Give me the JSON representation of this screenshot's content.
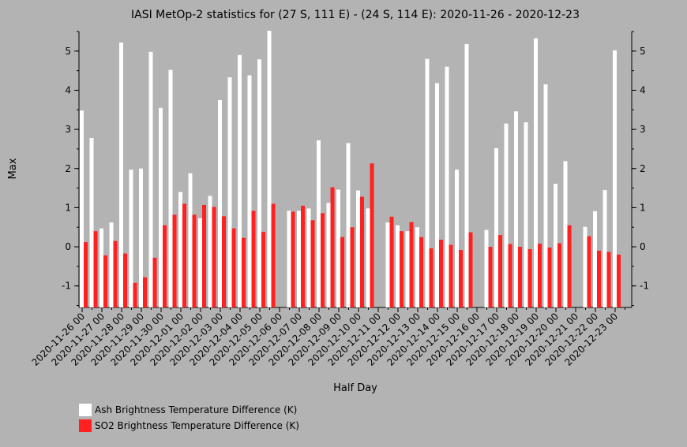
{
  "chart_data": {
    "type": "bar",
    "title": "IASI MetOp-2 statistics for (27 S, 111 E) - (24 S, 114 E): 2020-11-26 - 2020-12-23",
    "xlabel": "Half Day",
    "ylabel": "Max",
    "ylim": [
      -1.55,
      5.5
    ],
    "yticks": [
      -1,
      0,
      1,
      2,
      3,
      4,
      5
    ],
    "legend_position": "bottom-left",
    "grid": false,
    "categories": [
      "2020-11-26 00",
      "2020-11-26 12",
      "2020-11-27 00",
      "2020-11-27 12",
      "2020-11-28 00",
      "2020-11-28 12",
      "2020-11-29 00",
      "2020-11-29 12",
      "2020-11-30 00",
      "2020-11-30 12",
      "2020-12-01 00",
      "2020-12-01 12",
      "2020-12-02 00",
      "2020-12-02 12",
      "2020-12-03 00",
      "2020-12-03 12",
      "2020-12-04 00",
      "2020-12-04 12",
      "2020-12-05 00",
      "2020-12-05 12",
      "2020-12-06 00",
      "2020-12-06 12",
      "2020-12-07 00",
      "2020-12-07 12",
      "2020-12-08 00",
      "2020-12-08 12",
      "2020-12-09 00",
      "2020-12-09 12",
      "2020-12-10 00",
      "2020-12-10 12",
      "2020-12-11 00",
      "2020-12-11 12",
      "2020-12-12 00",
      "2020-12-12 12",
      "2020-12-13 00",
      "2020-12-13 12",
      "2020-12-14 00",
      "2020-12-14 12",
      "2020-12-15 00",
      "2020-12-15 12",
      "2020-12-16 00",
      "2020-12-16 12",
      "2020-12-17 00",
      "2020-12-17 12",
      "2020-12-18 00",
      "2020-12-18 12",
      "2020-12-19 00",
      "2020-12-19 12",
      "2020-12-20 00",
      "2020-12-20 12",
      "2020-12-21 00",
      "2020-12-21 12",
      "2020-12-22 00",
      "2020-12-22 12",
      "2020-12-23 00",
      "2020-12-23 12"
    ],
    "xtick_labels": [
      "2020-11-26 00",
      "2020-11-27 00",
      "2020-11-28 00",
      "2020-11-29 00",
      "2020-11-30 00",
      "2020-12-01 00",
      "2020-12-02 00",
      "2020-12-03 00",
      "2020-12-04 00",
      "2020-12-05 00",
      "2020-12-06 00",
      "2020-12-07 00",
      "2020-12-08 00",
      "2020-12-09 00",
      "2020-12-10 00",
      "2020-12-11 00",
      "2020-12-12 00",
      "2020-12-13 00",
      "2020-12-14 00",
      "2020-12-15 00",
      "2020-12-16 00",
      "2020-12-17 00",
      "2020-12-18 00",
      "2020-12-19 00",
      "2020-12-20 00",
      "2020-12-21 00",
      "2020-12-22 00",
      "2020-12-23 00"
    ],
    "series": [
      {
        "name": "Ash Brightness Temperature Difference (K)",
        "color": "#ffffff",
        "values": [
          3.48,
          2.78,
          0.47,
          0.62,
          5.22,
          1.97,
          2.0,
          4.98,
          3.55,
          4.52,
          1.4,
          1.88,
          0.73,
          1.3,
          3.75,
          4.33,
          4.9,
          4.38,
          4.79,
          5.52,
          null,
          0.92,
          0.92,
          0.98,
          2.72,
          1.12,
          1.46,
          2.65,
          1.44,
          0.98,
          null,
          0.62,
          0.55,
          0.4,
          0.5,
          4.8,
          4.18,
          4.6,
          1.97,
          5.18,
          null,
          0.43,
          2.52,
          3.15,
          3.46,
          3.18,
          5.33,
          4.15,
          1.61,
          2.19,
          null,
          0.51,
          0.91,
          1.45,
          5.02,
          null
        ]
      },
      {
        "name": "SO2 Brightness Temperature Difference (K)",
        "color": "#ff2020",
        "values": [
          0.12,
          0.4,
          -0.22,
          0.15,
          -0.17,
          -0.92,
          -0.78,
          -0.28,
          0.55,
          0.82,
          1.1,
          0.82,
          1.07,
          1.02,
          0.78,
          0.47,
          0.23,
          0.92,
          0.38,
          1.1,
          null,
          0.9,
          1.05,
          0.68,
          0.86,
          1.52,
          0.25,
          0.5,
          1.28,
          2.13,
          null,
          0.77,
          0.4,
          0.63,
          0.25,
          -0.04,
          0.18,
          0.05,
          -0.08,
          0.37,
          null,
          0.0,
          0.3,
          0.07,
          0.0,
          -0.06,
          0.08,
          -0.02,
          0.09,
          0.55,
          null,
          0.27,
          -0.1,
          -0.13,
          -0.2,
          null
        ]
      }
    ]
  }
}
